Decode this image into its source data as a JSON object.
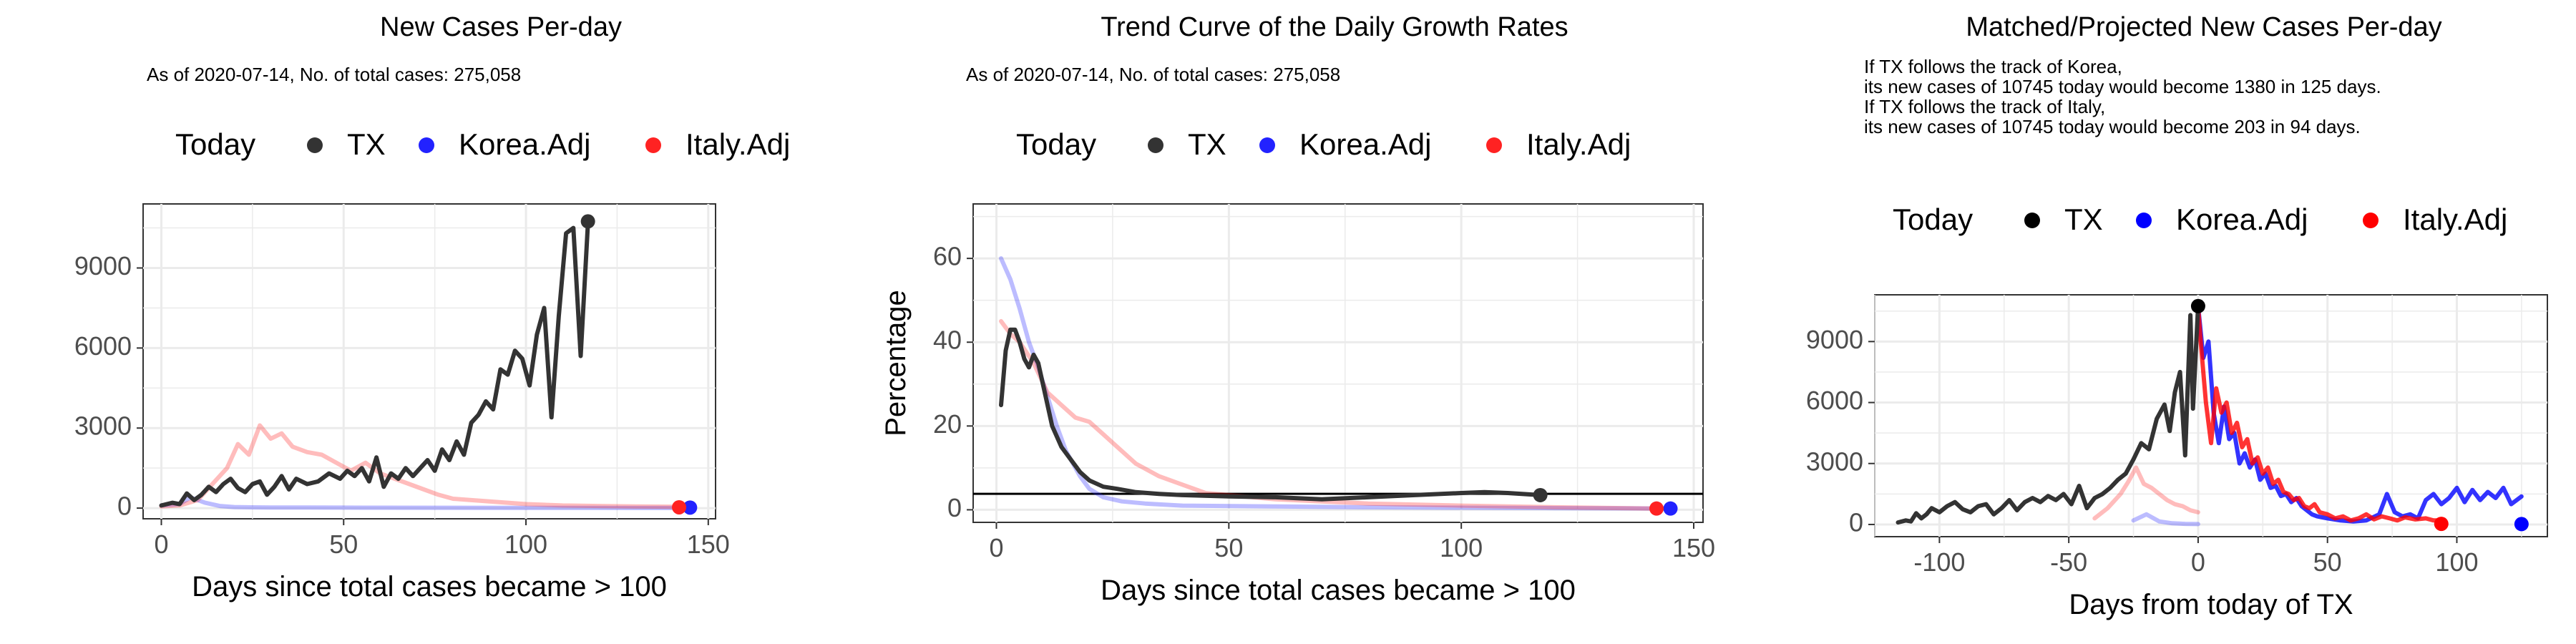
{
  "chart_data": [
    {
      "type": "line",
      "title": "New Cases Per-day",
      "subtitle": "As of 2020-07-14, No. of total cases: 275,058",
      "annotation": [],
      "xlabel": "Days since total cases became > 100",
      "ylabel": "",
      "xlim": [
        -5,
        152
      ],
      "ylim": [
        -400,
        11400
      ],
      "xticks": [
        0,
        50,
        100,
        150
      ],
      "yticks": [
        0,
        3000,
        6000,
        9000
      ],
      "legend": {
        "position": "top",
        "title": "Today",
        "items": [
          {
            "label": "TX",
            "color": "#333333"
          },
          {
            "label": "Korea.Adj",
            "color": "#2222ff"
          },
          {
            "label": "Italy.Adj",
            "color": "#ff2222"
          }
        ]
      },
      "series": [
        {
          "name": "TX",
          "color": "#333333",
          "opacity": 1,
          "x": [
            0,
            3,
            5,
            7,
            9,
            11,
            13,
            15,
            17,
            19,
            21,
            23,
            25,
            27,
            29,
            31,
            33,
            35,
            37,
            40,
            43,
            46,
            49,
            51,
            53,
            55,
            57,
            59,
            61,
            63,
            65,
            67,
            69,
            71,
            73,
            75,
            77,
            79,
            81,
            83,
            85,
            87,
            89,
            91,
            93,
            95,
            97,
            99,
            101,
            103,
            105,
            107,
            109,
            111,
            113,
            115,
            117
          ],
          "y": [
            100,
            200,
            150,
            550,
            300,
            500,
            800,
            600,
            900,
            1100,
            750,
            600,
            900,
            1000,
            500,
            800,
            1200,
            700,
            1100,
            900,
            1000,
            1300,
            1100,
            1400,
            1200,
            1500,
            1000,
            1900,
            800,
            1300,
            1100,
            1500,
            1200,
            1500,
            1800,
            1400,
            2200,
            1800,
            2500,
            2000,
            3200,
            3500,
            4000,
            3700,
            5200,
            5000,
            5900,
            5600,
            4600,
            6500,
            7500,
            3400,
            7200,
            10300,
            10500,
            5700,
            10700
          ]
        },
        {
          "name": "Korea.Adj",
          "color": "#2222ff",
          "opacity": 0.3,
          "x": [
            0,
            5,
            8,
            12,
            16,
            20,
            25,
            30,
            40,
            50,
            60,
            80,
            100,
            120,
            140,
            145
          ],
          "y": [
            100,
            150,
            400,
            200,
            80,
            40,
            30,
            25,
            20,
            18,
            15,
            12,
            10,
            8,
            5,
            5
          ]
        },
        {
          "name": "Italy.Adj",
          "color": "#ff2222",
          "opacity": 0.3,
          "x": [
            0,
            5,
            10,
            14,
            18,
            21,
            24,
            27,
            30,
            33,
            36,
            40,
            44,
            48,
            52,
            56,
            60,
            64,
            68,
            72,
            76,
            80,
            85,
            90,
            95,
            100,
            110,
            120,
            130,
            142
          ],
          "y": [
            60,
            100,
            300,
            900,
            1500,
            2400,
            2000,
            3100,
            2600,
            2800,
            2300,
            2100,
            2000,
            1700,
            1400,
            1700,
            1300,
            1100,
            900,
            700,
            500,
            350,
            300,
            250,
            200,
            150,
            100,
            80,
            60,
            50
          ]
        }
      ],
      "points": [
        {
          "series": "TX",
          "x": 117,
          "y": 10745,
          "color": "#333333"
        },
        {
          "series": "Korea.Adj",
          "x": 145,
          "y": 20,
          "color": "#2222ff"
        },
        {
          "series": "Italy.Adj",
          "x": 142,
          "y": 30,
          "color": "#ff2222"
        }
      ],
      "hlines": []
    },
    {
      "type": "line",
      "title": "Trend Curve of the Daily Growth Rates",
      "subtitle": "As of 2020-07-14, No. of total cases: 275,058",
      "annotation": [],
      "xlabel": "Days since total cases became > 100",
      "ylabel": "Percentage",
      "xlim": [
        -5,
        152
      ],
      "ylim": [
        -3,
        73
      ],
      "xticks": [
        0,
        50,
        100,
        150
      ],
      "yticks": [
        0,
        20,
        40,
        60
      ],
      "legend": {
        "position": "top",
        "title": "Today",
        "items": [
          {
            "label": "TX",
            "color": "#333333"
          },
          {
            "label": "Korea.Adj",
            "color": "#2222ff"
          },
          {
            "label": "Italy.Adj",
            "color": "#ff2222"
          }
        ]
      },
      "series": [
        {
          "name": "TX",
          "color": "#333333",
          "opacity": 1,
          "x": [
            1,
            2,
            3,
            4,
            5,
            6,
            7,
            8,
            9,
            10,
            12,
            14,
            16,
            18,
            20,
            23,
            26,
            30,
            35,
            40,
            50,
            60,
            70,
            80,
            90,
            100,
            105,
            110,
            117
          ],
          "y": [
            25,
            38,
            43,
            43,
            40,
            36,
            34,
            37,
            35,
            30,
            20,
            15,
            12,
            9,
            7,
            5.5,
            5,
            4.2,
            3.8,
            3.5,
            3.2,
            3,
            2.5,
            3,
            3.5,
            4,
            4.2,
            4,
            3.5
          ]
        },
        {
          "name": "Korea.Adj",
          "color": "#2222ff",
          "opacity": 0.3,
          "x": [
            1,
            3,
            5,
            7,
            9,
            11,
            13,
            15,
            18,
            20,
            23,
            27,
            32,
            40,
            60,
            80,
            100,
            120,
            145
          ],
          "y": [
            60,
            55,
            48,
            40,
            34,
            27,
            20,
            14,
            8,
            5,
            3,
            2,
            1.5,
            1,
            0.8,
            0.6,
            0.5,
            0.4,
            0.3
          ]
        },
        {
          "name": "Italy.Adj",
          "color": "#ff2222",
          "opacity": 0.3,
          "x": [
            1,
            3,
            5,
            8,
            11,
            14,
            17,
            20,
            23,
            26,
            30,
            35,
            40,
            45,
            50,
            60,
            70,
            80,
            100,
            120,
            142
          ],
          "y": [
            45,
            42,
            40,
            35,
            28,
            25,
            22,
            21,
            18,
            15,
            11,
            8,
            6,
            4,
            3.5,
            2.5,
            2,
            1.5,
            1,
            0.6,
            0.3
          ]
        }
      ],
      "points": [
        {
          "series": "TX",
          "x": 117,
          "y": 3.5,
          "color": "#333333"
        },
        {
          "series": "Korea.Adj",
          "x": 145,
          "y": 0.3,
          "color": "#2222ff"
        },
        {
          "series": "Italy.Adj",
          "x": 142,
          "y": 0.3,
          "color": "#ff2222"
        }
      ],
      "hlines": [
        {
          "y": 3.8,
          "color": "#000000"
        }
      ]
    },
    {
      "type": "line",
      "title": "Matched/Projected New Cases Per-day",
      "subtitle": "",
      "annotation": [
        "If TX follows the track of Korea,",
        "its new cases of 10745 today would become 1380 in 125 days.",
        "If TX follows the track of Italy,",
        "its new cases of 10745 today would become 203 in 94 days."
      ],
      "xlabel": "Days from today of TX",
      "ylabel": "",
      "xlim": [
        -125,
        135
      ],
      "ylim": [
        -600,
        11300
      ],
      "xticks": [
        -100,
        -50,
        0,
        50,
        100
      ],
      "yticks": [
        0,
        3000,
        6000,
        9000
      ],
      "legend": {
        "position": "top",
        "title": "Today",
        "items": [
          {
            "label": "TX",
            "color": "#000000"
          },
          {
            "label": "Korea.Adj",
            "color": "#0000ff"
          },
          {
            "label": "Italy.Adj",
            "color": "#ff0000"
          }
        ]
      },
      "series": [
        {
          "name": "TX history",
          "color": "#333333",
          "opacity": 1,
          "x": [
            -116,
            -113,
            -111,
            -109,
            -107,
            -105,
            -103,
            -100,
            -97,
            -94,
            -91,
            -88,
            -85,
            -82,
            -79,
            -76,
            -73,
            -70,
            -67,
            -64,
            -61,
            -58,
            -55,
            -52,
            -49,
            -46,
            -43,
            -40,
            -37,
            -34,
            -31,
            -28,
            -25,
            -22,
            -19,
            -16,
            -13,
            -11,
            -9,
            -7,
            -5,
            -3,
            -2,
            0
          ],
          "y": [
            100,
            200,
            150,
            550,
            300,
            500,
            800,
            600,
            900,
            1100,
            750,
            600,
            900,
            1000,
            500,
            800,
            1200,
            700,
            1100,
            1300,
            1100,
            1400,
            1200,
            1500,
            1000,
            1900,
            800,
            1300,
            1500,
            1800,
            2200,
            2500,
            3200,
            4000,
            3700,
            5200,
            5900,
            4600,
            6500,
            7500,
            3400,
            10300,
            5700,
            10745
          ]
        },
        {
          "name": "Korea.Adj history",
          "color": "#2222ff",
          "opacity": 0.3,
          "x": [
            -25,
            -20,
            -15,
            -10,
            -5,
            0
          ],
          "y": [
            200,
            500,
            150,
            60,
            30,
            20
          ]
        },
        {
          "name": "Italy.Adj history",
          "color": "#ff2222",
          "opacity": 0.3,
          "x": [
            -40,
            -35,
            -30,
            -27,
            -24,
            -21,
            -18,
            -15,
            -12,
            -9,
            -6,
            -3,
            0
          ],
          "y": [
            300,
            800,
            1500,
            2100,
            2800,
            2000,
            1800,
            1500,
            1200,
            1000,
            900,
            700,
            600
          ]
        },
        {
          "name": "Korea.Adj projected",
          "color": "#0000ff",
          "opacity": 0.8,
          "x": [
            0,
            2,
            4,
            6,
            8,
            10,
            12,
            14,
            16,
            18,
            20,
            22,
            24,
            26,
            28,
            30,
            32,
            34,
            36,
            38,
            40,
            42,
            44,
            46,
            48,
            50,
            55,
            60,
            65,
            70,
            73,
            76,
            79,
            82,
            85,
            88,
            91,
            94,
            97,
            100,
            103,
            106,
            109,
            112,
            115,
            118,
            121,
            125
          ],
          "y": [
            10745,
            8200,
            9000,
            5500,
            4000,
            5800,
            4200,
            4500,
            3000,
            3500,
            2800,
            3200,
            2200,
            2500,
            1800,
            1900,
            1400,
            1500,
            1100,
            1300,
            900,
            700,
            500,
            400,
            350,
            300,
            200,
            150,
            200,
            500,
            1500,
            600,
            400,
            500,
            300,
            1200,
            1500,
            1000,
            1300,
            1800,
            1100,
            1700,
            1200,
            1600,
            1300,
            1800,
            1000,
            1380
          ]
        },
        {
          "name": "Italy.Adj projected",
          "color": "#ff0000",
          "opacity": 0.8,
          "x": [
            0,
            1,
            3,
            5,
            7,
            9,
            11,
            13,
            15,
            17,
            19,
            21,
            23,
            25,
            27,
            29,
            31,
            33,
            35,
            37,
            39,
            41,
            43,
            45,
            47,
            50,
            53,
            56,
            59,
            62,
            65,
            68,
            71,
            74,
            77,
            80,
            84,
            88,
            91,
            94
          ],
          "y": [
            10745,
            9000,
            6000,
            4000,
            6700,
            5500,
            6000,
            4500,
            5000,
            3800,
            4200,
            3000,
            3300,
            2500,
            2800,
            2000,
            2200,
            1600,
            1500,
            1200,
            1300,
            900,
            800,
            1000,
            600,
            500,
            300,
            400,
            200,
            300,
            500,
            250,
            400,
            300,
            200,
            350,
            250,
            300,
            200,
            203
          ]
        }
      ],
      "points": [
        {
          "series": "TX",
          "x": 0,
          "y": 10745,
          "color": "#000000"
        },
        {
          "series": "Korea.Adj",
          "x": 125,
          "y": 20,
          "color": "#0000ff"
        },
        {
          "series": "Italy.Adj",
          "x": 94,
          "y": 30,
          "color": "#ff0000"
        }
      ],
      "hlines": []
    }
  ]
}
